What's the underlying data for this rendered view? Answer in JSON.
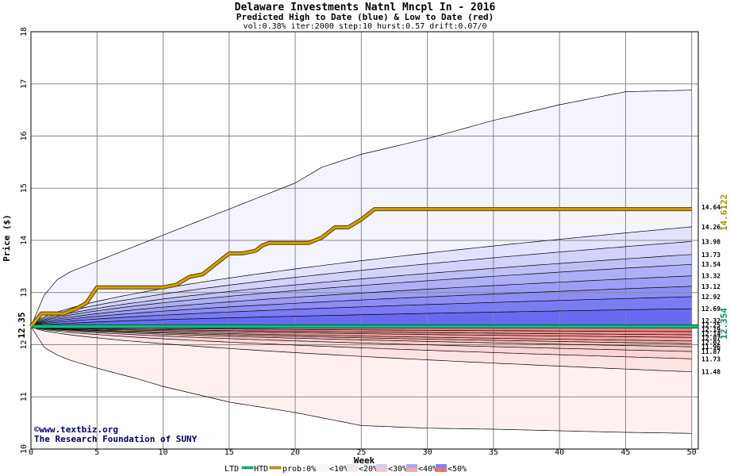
{
  "chart_data": {
    "type": "area",
    "title": "Delaware Investments Natnl Mncpl In - 2016",
    "subtitle": "Predicted High to Date (blue) &  Low to Date (red)",
    "params": "vol:0.38% iter:2000 step:10 hurst:0.57 drift:0.07/0",
    "xlabel": "Week",
    "ylabel": "Price ($)",
    "xlim": [
      0,
      50.5
    ],
    "ylim": [
      10,
      18
    ],
    "xticks": [
      0,
      5,
      10,
      15,
      20,
      25,
      30,
      35,
      40,
      45,
      50
    ],
    "yticks": [
      10,
      11,
      12,
      13,
      14,
      15,
      16,
      17,
      18
    ],
    "grid": true,
    "start_price": 12.35,
    "start_label": "12.35",
    "final_label": "12.354",
    "htd_label": "14.6122",
    "high_band_end_labels": [
      "14.64",
      "14.26",
      "13.98",
      "13.73",
      "13.54",
      "13.32",
      "13.12",
      "12.92",
      "12.69"
    ],
    "low_band_end_labels": [
      "12.32",
      "12.25",
      "12.19",
      "12.14",
      "12.07",
      "12.02",
      "11.96",
      "11.87",
      "11.73",
      "11.48"
    ],
    "high_band_end_values": [
      14.64,
      14.26,
      13.98,
      13.73,
      13.54,
      13.32,
      13.12,
      12.92,
      12.69
    ],
    "low_band_end_values": [
      12.32,
      12.25,
      12.19,
      12.14,
      12.07,
      12.02,
      11.96,
      11.87,
      11.73,
      11.48
    ],
    "high_outer": {
      "x": [
        0,
        1,
        2,
        3,
        5,
        8,
        10,
        15,
        20,
        22,
        25,
        30,
        35,
        40,
        44,
        45,
        50
      ],
      "y": [
        12.35,
        12.95,
        13.25,
        13.4,
        13.6,
        13.9,
        14.1,
        14.6,
        15.1,
        15.4,
        15.65,
        15.95,
        16.3,
        16.6,
        16.8,
        16.85,
        16.88
      ]
    },
    "low_outer": {
      "x": [
        0,
        1,
        2,
        3,
        5,
        8,
        10,
        15,
        20,
        22,
        25,
        30,
        35,
        40,
        45,
        50
      ],
      "y": [
        12.35,
        11.95,
        11.8,
        11.7,
        11.55,
        11.35,
        11.2,
        10.9,
        10.7,
        10.6,
        10.45,
        10.4,
        10.38,
        10.35,
        10.32,
        10.3
      ]
    },
    "htd_path": {
      "x": [
        0,
        0.8,
        2.5,
        3.5,
        4.2,
        4.6,
        5.0,
        6.0,
        8.0,
        10.0,
        11.0,
        12.0,
        13.0,
        13.5,
        14.0,
        14.5,
        15.0,
        16.0,
        17.0,
        17.5,
        18.0,
        19.0,
        20.0,
        21.0,
        22.0,
        23.0,
        24.0,
        25.0,
        25.5,
        26.0,
        27.0,
        28.0,
        30.0,
        35.0,
        40.0,
        45.0,
        50.0
      ],
      "y": [
        12.35,
        12.6,
        12.6,
        12.7,
        12.8,
        12.95,
        13.1,
        13.1,
        13.1,
        13.1,
        13.15,
        13.3,
        13.35,
        13.45,
        13.55,
        13.65,
        13.75,
        13.75,
        13.8,
        13.9,
        13.95,
        13.95,
        13.95,
        13.95,
        14.05,
        14.25,
        14.25,
        14.4,
        14.5,
        14.6,
        14.6,
        14.6,
        14.6,
        14.6,
        14.6,
        14.6,
        14.6
      ]
    },
    "ltd_value": 12.35,
    "legend": {
      "ltd": "LTD",
      "htd": "HTD",
      "prob": "prob:0%",
      "bands": [
        "<10%",
        "<20%",
        "<30%",
        "<40%",
        "<50%"
      ]
    },
    "colors": {
      "htd": "#d4a000",
      "ltd": "#00c080",
      "high_band_outer": "#f4f4ff",
      "high_band_inner": "#6a6af0",
      "low_band_outer": "#fff0f0",
      "low_band_inner": "#f07070",
      "htd_label_color": "#b08a00",
      "final_label_color": "#009060"
    }
  },
  "credit": {
    "line1": "©www.textbiz.org",
    "line2": "The Research Foundation of SUNY"
  }
}
